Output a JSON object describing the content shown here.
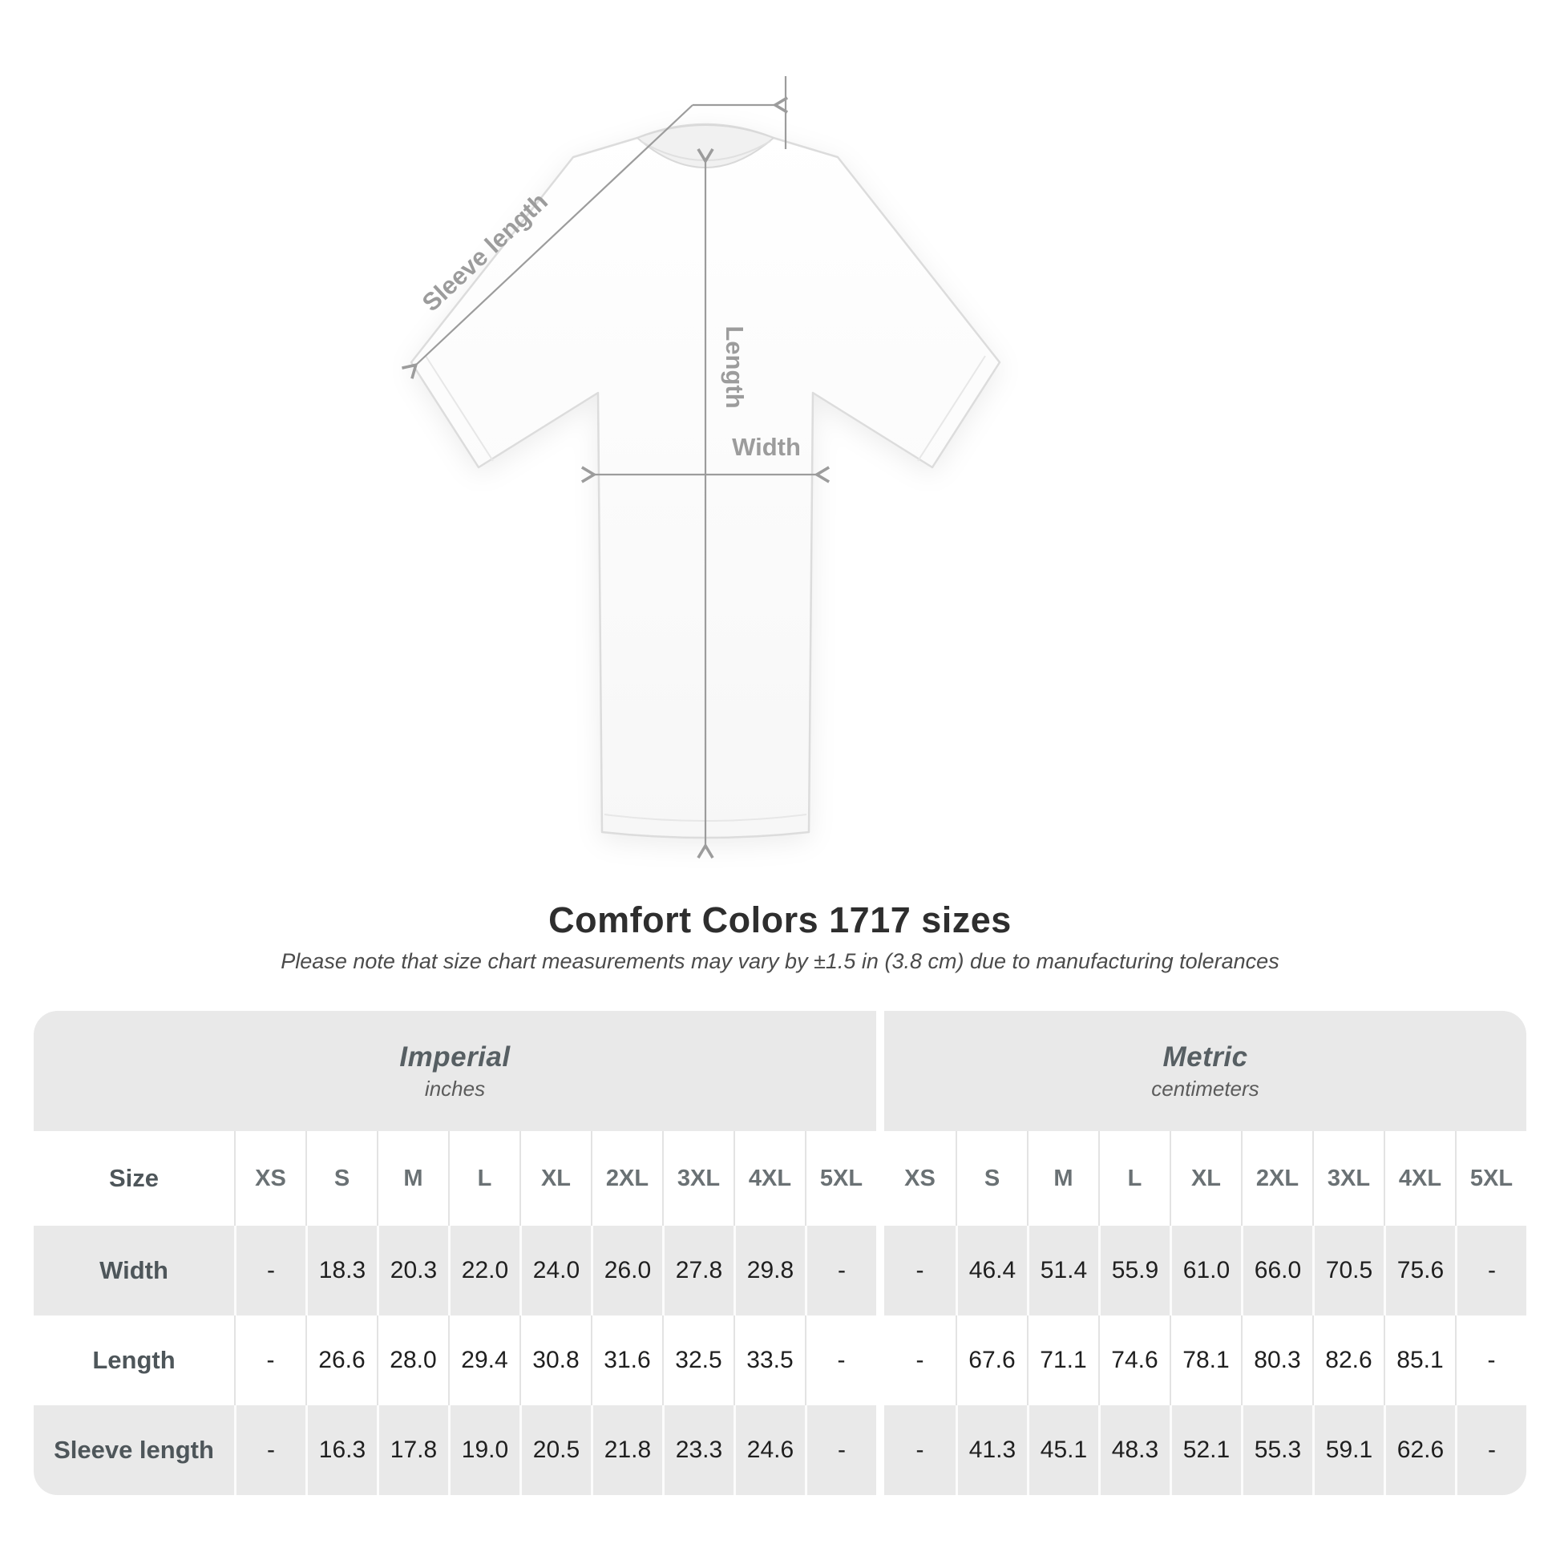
{
  "shirt_diagram": {
    "labels": {
      "sleeve_length": "Sleeve length",
      "length": "Length",
      "width": "Width"
    },
    "line_color": "#9c9c9c"
  },
  "title": "Comfort Colors 1717 sizes",
  "subtitle": "Please note that size chart measurements may vary by ±1.5 in (3.8 cm) due to manufacturing tolerances",
  "size_table": {
    "background": "#e9e9e9",
    "sections": [
      {
        "name": "Imperial",
        "unit": "inches"
      },
      {
        "name": "Metric",
        "unit": "centimeters"
      }
    ],
    "size_column_header": "Size",
    "sizes": [
      "XS",
      "S",
      "M",
      "L",
      "XL",
      "2XL",
      "3XL",
      "4XL",
      "5XL"
    ],
    "rows": [
      {
        "label": "Width",
        "imperial": [
          "-",
          "18.3",
          "20.3",
          "22.0",
          "24.0",
          "26.0",
          "27.8",
          "29.8",
          "-"
        ],
        "metric": [
          "-",
          "46.4",
          "51.4",
          "55.9",
          "61.0",
          "66.0",
          "70.5",
          "75.6",
          "-"
        ]
      },
      {
        "label": "Length",
        "imperial": [
          "-",
          "26.6",
          "28.0",
          "29.4",
          "30.8",
          "31.6",
          "32.5",
          "33.5",
          "-"
        ],
        "metric": [
          "-",
          "67.6",
          "71.1",
          "74.6",
          "78.1",
          "80.3",
          "82.6",
          "85.1",
          "-"
        ]
      },
      {
        "label": "Sleeve length",
        "imperial": [
          "-",
          "16.3",
          "17.8",
          "19.0",
          "20.5",
          "21.8",
          "23.3",
          "24.6",
          "-"
        ],
        "metric": [
          "-",
          "41.3",
          "45.1",
          "48.3",
          "52.1",
          "55.3",
          "59.1",
          "62.6",
          "-"
        ]
      }
    ]
  }
}
